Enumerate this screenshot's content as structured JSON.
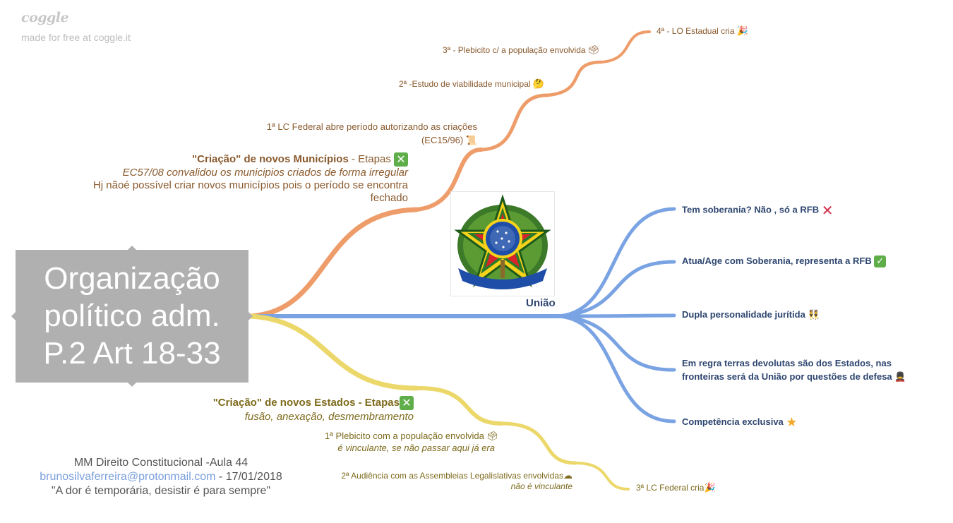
{
  "brand": {
    "logo_text": "coggle",
    "made_free": "made for free at coggle.it"
  },
  "root": {
    "lines": [
      "Organização",
      "político adm.",
      "P.2 Art 18-33"
    ]
  },
  "colors": {
    "orange": "#ee9d6a",
    "blue": "#7aa3e3",
    "yellow": "#ecd86a",
    "root_bg": "#b0b0b0"
  },
  "municipios": {
    "title": "\"Criação\" de novos Municípios",
    "title_suffix": " - Etapas",
    "icon": "cross-mark-button-icon",
    "line2": "EC57/08 convalidou os municipios criados de forma irregular",
    "line3": "Hj nãoé possível criar novos municípios pois o período se encontra",
    "line4": "fechado",
    "step1_line1": "1ª LC Federal abre período autorizando as criações",
    "step1_line2": "(EC15/96)",
    "step1_icon": "scroll-icon",
    "step2": "2ª -Estudo de viabilidade municipal",
    "step2_icon": "thinking-face-icon",
    "step3": "3ª - Plebicito c/ a população envolvida",
    "step3_icon": "ballot-box-icon",
    "step4": "4ª - LO Estadual cria",
    "step4_icon": "party-popper-icon"
  },
  "uniao": {
    "label": "União",
    "image": "coat-of-arms-of-brazil",
    "items": [
      {
        "text": "Tem soberania? Não , só a RFB",
        "icon": "cross-mark-icon"
      },
      {
        "text": "Atua/Age com Soberania, representa a RFB",
        "icon": "check-mark-button-icon"
      },
      {
        "text": "Dupla personalidade jurítida",
        "icon": "people-icon"
      },
      {
        "text_line1": "Em regra terras devolutas são dos Estados, nas",
        "text_line2": "fronteiras será da União por questões de defesa",
        "icon": "guard-icon"
      },
      {
        "text": "Competência exclusiva",
        "icon": "star-icon"
      }
    ]
  },
  "estados": {
    "title": "\"Criação\" de novos Estados - Etapas",
    "icon": "cross-mark-button-icon",
    "subtitle": "fusão, anexação, desmembramento",
    "step1": "1ª Plebicito com a população envolvida",
    "step1_icon": "ballot-box-icon",
    "step1_note": "é vinculante, se não passar aqui já era",
    "step2": "2ª Audiência com as Assembleias Legalislativas envolvidas",
    "step2_icon": "cloud-icon",
    "step2_note": "não é vinculante",
    "step3": "3ª LC Federal cria",
    "step3_icon": "party-popper-icon"
  },
  "footer": {
    "line1": "MM Direito Constitucional -Aula 44",
    "email": "brunosilvaferreira@protonmail.com",
    "date": " - 17/01/2018",
    "quote": "\"A dor é temporária, desistir é para sempre\""
  }
}
